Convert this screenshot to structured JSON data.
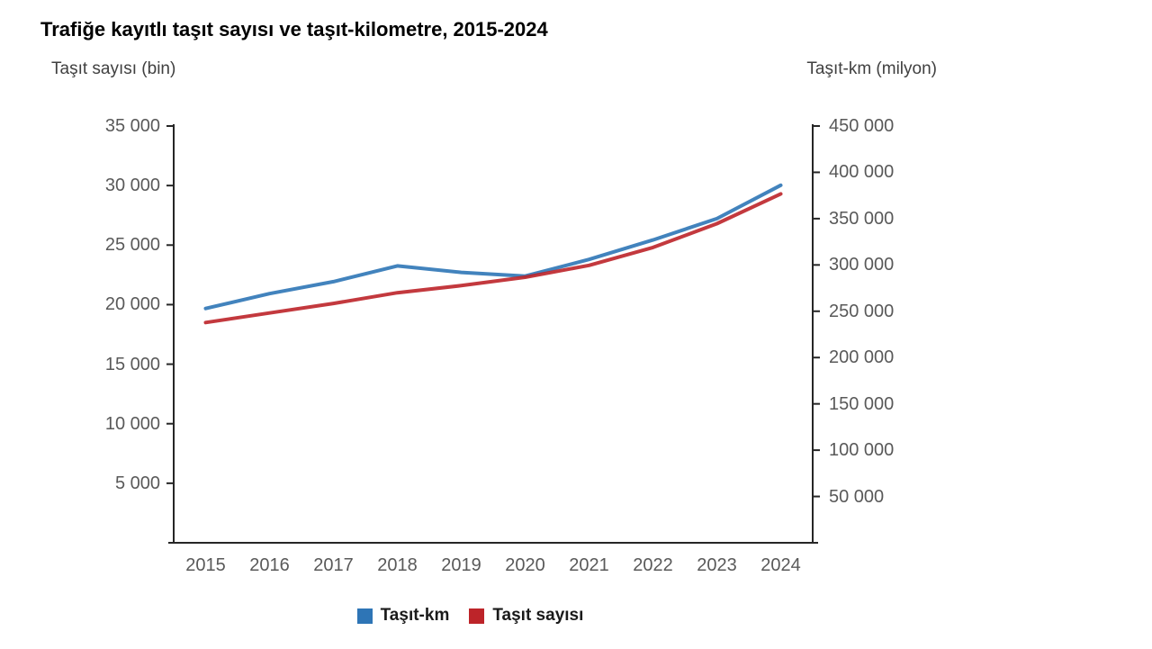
{
  "page": {
    "background": "#ffffff",
    "title": "Trafiğe kayıtlı taşıt sayısı ve taşıt-kilometre, 2015-2024"
  },
  "colors": {
    "title_text": "#000000",
    "axis_title_text": "#404040",
    "tick_label_text": "#595959",
    "axis_line": "#262626",
    "series_vehicle_km": "#2e75b6",
    "series_vehicle_count": "#bd2429"
  },
  "chart_data": {
    "type": "line",
    "title": "Trafiğe kayıtlı taşıt sayısı ve taşıt-kilometre, 2015-2024",
    "categories": [
      "2015",
      "2016",
      "2017",
      "2018",
      "2019",
      "2020",
      "2021",
      "2022",
      "2023",
      "2024"
    ],
    "left_axis": {
      "title": "Taşıt sayısı (bin)",
      "min": 0,
      "max": 35000,
      "ticks": [
        {
          "value": 35000,
          "label": "35 000"
        },
        {
          "value": 30000,
          "label": "30 000"
        },
        {
          "value": 25000,
          "label": "25 000"
        },
        {
          "value": 20000,
          "label": "20 000"
        },
        {
          "value": 15000,
          "label": "15 000"
        },
        {
          "value": 10000,
          "label": "10 000"
        },
        {
          "value": 5000,
          "label": "5 000"
        }
      ]
    },
    "right_axis": {
      "title": "Taşıt-km (milyon)",
      "min": 0,
      "max": 450000,
      "ticks": [
        {
          "value": 450000,
          "label": "450 000"
        },
        {
          "value": 400000,
          "label": "400 000"
        },
        {
          "value": 350000,
          "label": "350 000"
        },
        {
          "value": 300000,
          "label": "300 000"
        },
        {
          "value": 250000,
          "label": "250 000"
        },
        {
          "value": 200000,
          "label": "200 000"
        },
        {
          "value": 150000,
          "label": "150 000"
        },
        {
          "value": 100000,
          "label": "100 000"
        },
        {
          "value": 50000,
          "label": "50 000"
        }
      ]
    },
    "series": [
      {
        "name": "Taşıt-km",
        "axis": "right",
        "color": "#2e75b6",
        "values": [
          253000,
          269000,
          282000,
          299000,
          292000,
          288000,
          306000,
          327000,
          350000,
          386000
        ]
      },
      {
        "name": "Taşıt sayısı",
        "axis": "left",
        "color": "#bd2429",
        "values": [
          18500,
          19300,
          20100,
          21000,
          21600,
          22300,
          23300,
          24800,
          26800,
          29300
        ]
      }
    ],
    "legend_position": "bottom",
    "grid": false
  }
}
